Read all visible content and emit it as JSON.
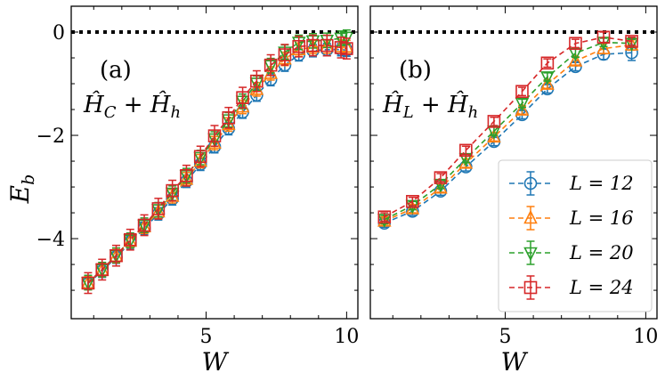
{
  "colors": {
    "L12": "#1f77b4",
    "L16": "#ff7f0e",
    "L20": "#2ca02c",
    "L24": "#d62728"
  },
  "y_label": "E_b",
  "chart_data": [
    {
      "type": "line",
      "panel_label": "(a)",
      "annotation": "Ĥ_C + Ĥ_h",
      "xlabel": "W",
      "ylabel": "E_b",
      "xlim": [
        0.2,
        10.4
      ],
      "ylim": [
        -5.55,
        0.5
      ],
      "xticks": [
        5,
        10
      ],
      "yticks": [
        0,
        -2,
        -4
      ],
      "reference_line_y": 0,
      "legend": false,
      "series": [
        {
          "name": "L = 12",
          "marker": "circle",
          "color": "#1f77b4",
          "x": [
            0.8,
            1.3,
            1.8,
            2.3,
            2.8,
            3.3,
            3.8,
            4.3,
            4.8,
            5.3,
            5.8,
            6.3,
            6.8,
            7.3,
            7.8,
            8.3,
            8.8,
            9.3,
            9.8,
            10.0
          ],
          "y": [
            -4.87,
            -4.63,
            -4.36,
            -4.08,
            -3.8,
            -3.52,
            -3.23,
            -2.89,
            -2.56,
            -2.22,
            -1.87,
            -1.55,
            -1.22,
            -0.92,
            -0.64,
            -0.44,
            -0.36,
            -0.34,
            -0.34,
            -0.35
          ],
          "err": [
            0.12,
            0.12,
            0.12,
            0.12,
            0.12,
            0.12,
            0.12,
            0.12,
            0.12,
            0.12,
            0.12,
            0.12,
            0.12,
            0.12,
            0.12,
            0.12,
            0.12,
            0.12,
            0.12,
            0.12
          ]
        },
        {
          "name": "L = 16",
          "marker": "triangle-up",
          "color": "#ff7f0e",
          "x": [
            0.8,
            1.3,
            1.8,
            2.3,
            2.8,
            3.3,
            3.8,
            4.3,
            4.8,
            5.3,
            5.8,
            6.3,
            6.8,
            7.3,
            7.8,
            8.3,
            8.8,
            9.3,
            9.8,
            10.0
          ],
          "y": [
            -4.86,
            -4.61,
            -4.34,
            -4.05,
            -3.77,
            -3.48,
            -3.18,
            -2.85,
            -2.5,
            -2.15,
            -1.79,
            -1.45,
            -1.11,
            -0.8,
            -0.52,
            -0.34,
            -0.29,
            -0.28,
            -0.28,
            -0.29
          ],
          "err": [
            0.13,
            0.13,
            0.13,
            0.13,
            0.13,
            0.13,
            0.13,
            0.13,
            0.13,
            0.13,
            0.13,
            0.13,
            0.13,
            0.13,
            0.13,
            0.13,
            0.13,
            0.13,
            0.13,
            0.13
          ]
        },
        {
          "name": "L = 20",
          "marker": "triangle-down",
          "color": "#2ca02c",
          "x": [
            0.8,
            1.3,
            1.8,
            2.3,
            2.8,
            3.3,
            3.8,
            4.3,
            4.8,
            5.3,
            5.8,
            6.3,
            6.8,
            7.3,
            7.8,
            8.3,
            8.8,
            9.3,
            9.8,
            10.0
          ],
          "y": [
            -4.85,
            -4.6,
            -4.32,
            -4.03,
            -3.74,
            -3.44,
            -3.12,
            -2.78,
            -2.43,
            -2.07,
            -1.7,
            -1.34,
            -0.99,
            -0.65,
            -0.39,
            -0.2,
            -0.17,
            -0.16,
            -0.12,
            -0.1
          ],
          "err": [
            0.14,
            0.14,
            0.14,
            0.14,
            0.14,
            0.14,
            0.14,
            0.14,
            0.14,
            0.14,
            0.14,
            0.14,
            0.14,
            0.14,
            0.14,
            0.14,
            0.14,
            0.14,
            0.14,
            0.14
          ]
        },
        {
          "name": "L = 24",
          "marker": "square",
          "color": "#d62728",
          "x": [
            0.8,
            1.3,
            1.8,
            2.3,
            2.8,
            3.3,
            3.8,
            4.3,
            4.8,
            5.3,
            5.8,
            6.3,
            6.8,
            7.3,
            7.8,
            8.3,
            8.8,
            9.3,
            9.8,
            10.0
          ],
          "y": [
            -4.86,
            -4.6,
            -4.33,
            -4.02,
            -3.74,
            -3.42,
            -3.07,
            -2.78,
            -2.41,
            -2.01,
            -1.66,
            -1.27,
            -0.95,
            -0.64,
            -0.44,
            -0.28,
            -0.26,
            -0.26,
            -0.3,
            -0.32
          ],
          "err": [
            0.2,
            0.2,
            0.2,
            0.2,
            0.2,
            0.2,
            0.2,
            0.2,
            0.2,
            0.2,
            0.2,
            0.2,
            0.2,
            0.2,
            0.2,
            0.2,
            0.2,
            0.2,
            0.2,
            0.2
          ]
        }
      ]
    },
    {
      "type": "line",
      "panel_label": "(b)",
      "annotation": "Ĥ_L + Ĥ_h",
      "xlabel": "W",
      "ylabel": "",
      "xlim": [
        0.2,
        10.4
      ],
      "ylim": [
        -5.55,
        0.5
      ],
      "xticks": [
        5,
        10
      ],
      "yticks": [
        0,
        -2,
        -4
      ],
      "reference_line_y": 0,
      "legend": true,
      "legend_position": "bottom-right",
      "series": [
        {
          "name": "L = 12",
          "marker": "circle",
          "color": "#1f77b4",
          "x": [
            0.7,
            1.7,
            2.7,
            3.6,
            4.6,
            5.6,
            6.5,
            7.5,
            8.5,
            9.5
          ],
          "y": [
            -3.7,
            -3.47,
            -3.08,
            -2.61,
            -2.12,
            -1.6,
            -1.1,
            -0.67,
            -0.43,
            -0.4
          ],
          "err": [
            0.08,
            0.08,
            0.08,
            0.08,
            0.08,
            0.08,
            0.08,
            0.08,
            0.1,
            0.15
          ]
        },
        {
          "name": "L = 16",
          "marker": "triangle-up",
          "color": "#ff7f0e",
          "x": [
            0.7,
            1.7,
            2.7,
            3.6,
            4.6,
            5.6,
            6.5,
            7.5,
            8.5,
            9.5
          ],
          "y": [
            -3.66,
            -3.42,
            -3.02,
            -2.54,
            -2.03,
            -1.51,
            -1.01,
            -0.56,
            -0.32,
            -0.25
          ],
          "err": [
            0.08,
            0.08,
            0.08,
            0.08,
            0.08,
            0.08,
            0.08,
            0.08,
            0.1,
            0.1
          ]
        },
        {
          "name": "L = 20",
          "marker": "triangle-down",
          "color": "#2ca02c",
          "x": [
            0.7,
            1.7,
            2.7,
            3.6,
            4.6,
            5.6,
            6.5,
            7.5,
            8.5,
            9.5
          ],
          "y": [
            -3.63,
            -3.36,
            -2.95,
            -2.45,
            -1.92,
            -1.38,
            -0.87,
            -0.41,
            -0.2,
            -0.22
          ],
          "err": [
            0.08,
            0.08,
            0.08,
            0.08,
            0.08,
            0.08,
            0.08,
            0.08,
            0.08,
            0.08
          ]
        },
        {
          "name": "L = 24",
          "marker": "square",
          "color": "#d62728",
          "x": [
            0.7,
            1.7,
            2.7,
            3.6,
            4.6,
            5.6,
            6.5,
            7.5,
            8.5,
            9.5
          ],
          "y": [
            -3.58,
            -3.28,
            -2.82,
            -2.29,
            -1.73,
            -1.15,
            -0.6,
            -0.22,
            -0.1,
            -0.18
          ],
          "err": [
            0.08,
            0.08,
            0.08,
            0.08,
            0.08,
            0.08,
            0.08,
            0.08,
            0.1,
            0.08
          ]
        }
      ]
    }
  ]
}
